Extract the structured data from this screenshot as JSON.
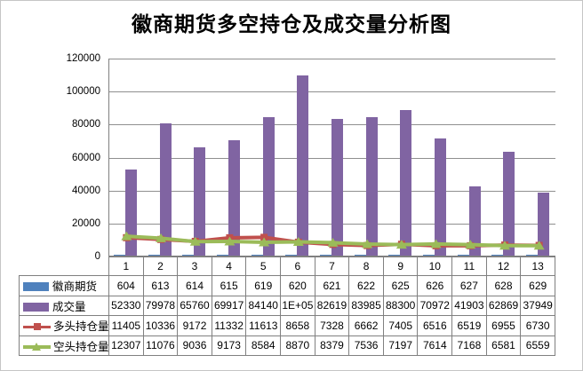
{
  "title": "徽商期货多空持仓及成交量分析图",
  "colors": {
    "huishang_blue": "#4F81BD",
    "volume_purple": "#8064A2",
    "long_red": "#C0504D",
    "short_green": "#9BBB59",
    "gridline_gray": "#8f8f8f",
    "table_border_gray": "#808080"
  },
  "chart_data": {
    "type": "bar",
    "title": "徽商期货多空持仓及成交量分析图",
    "xlabel": "",
    "ylabel": "",
    "ylim": [
      0,
      120000
    ],
    "y_ticks": [
      0,
      20000,
      40000,
      60000,
      80000,
      100000,
      120000
    ],
    "grid": true,
    "legend_position": "data-table-left",
    "categories": [
      "1",
      "2",
      "3",
      "4",
      "5",
      "6",
      "7",
      "8",
      "9",
      "10",
      "11",
      "12",
      "13"
    ],
    "series": [
      {
        "name": "徽商期货",
        "type": "bar",
        "color": "#4F81BD",
        "values": [
          604,
          613,
          614,
          615,
          619,
          620,
          621,
          622,
          625,
          626,
          627,
          628,
          629
        ],
        "display": [
          "604",
          "613",
          "614",
          "615",
          "619",
          "620",
          "621",
          "622",
          "625",
          "626",
          "627",
          "628",
          "629"
        ]
      },
      {
        "name": "成交量",
        "type": "bar",
        "color": "#8064A2",
        "values": [
          52330,
          79978,
          65760,
          69917,
          84140,
          109500,
          82619,
          83985,
          88300,
          70972,
          41903,
          62869,
          37949
        ],
        "display": [
          "52330",
          "79978",
          "65760",
          "69917",
          "84140",
          "1E+05",
          "82619",
          "83985",
          "88300",
          "70972",
          "41903",
          "62869",
          "37949"
        ]
      },
      {
        "name": "多头持仓量",
        "type": "line",
        "marker": "square",
        "color": "#C0504D",
        "values": [
          11405,
          10336,
          9172,
          11332,
          11613,
          8658,
          7328,
          6662,
          7405,
          6516,
          6519,
          6955,
          6730
        ],
        "display": [
          "11405",
          "10336",
          "9172",
          "11332",
          "11613",
          "8658",
          "7328",
          "6662",
          "7405",
          "6516",
          "6519",
          "6955",
          "6730"
        ]
      },
      {
        "name": "空头持仓量",
        "type": "line",
        "marker": "triangle",
        "color": "#9BBB59",
        "values": [
          12307,
          11076,
          9036,
          9173,
          8584,
          8870,
          8379,
          7536,
          7197,
          7614,
          7168,
          6581,
          6559
        ],
        "display": [
          "12307",
          "11076",
          "9036",
          "9173",
          "8584",
          "8870",
          "8379",
          "7536",
          "7197",
          "7614",
          "7168",
          "6581",
          "6559"
        ]
      }
    ]
  }
}
